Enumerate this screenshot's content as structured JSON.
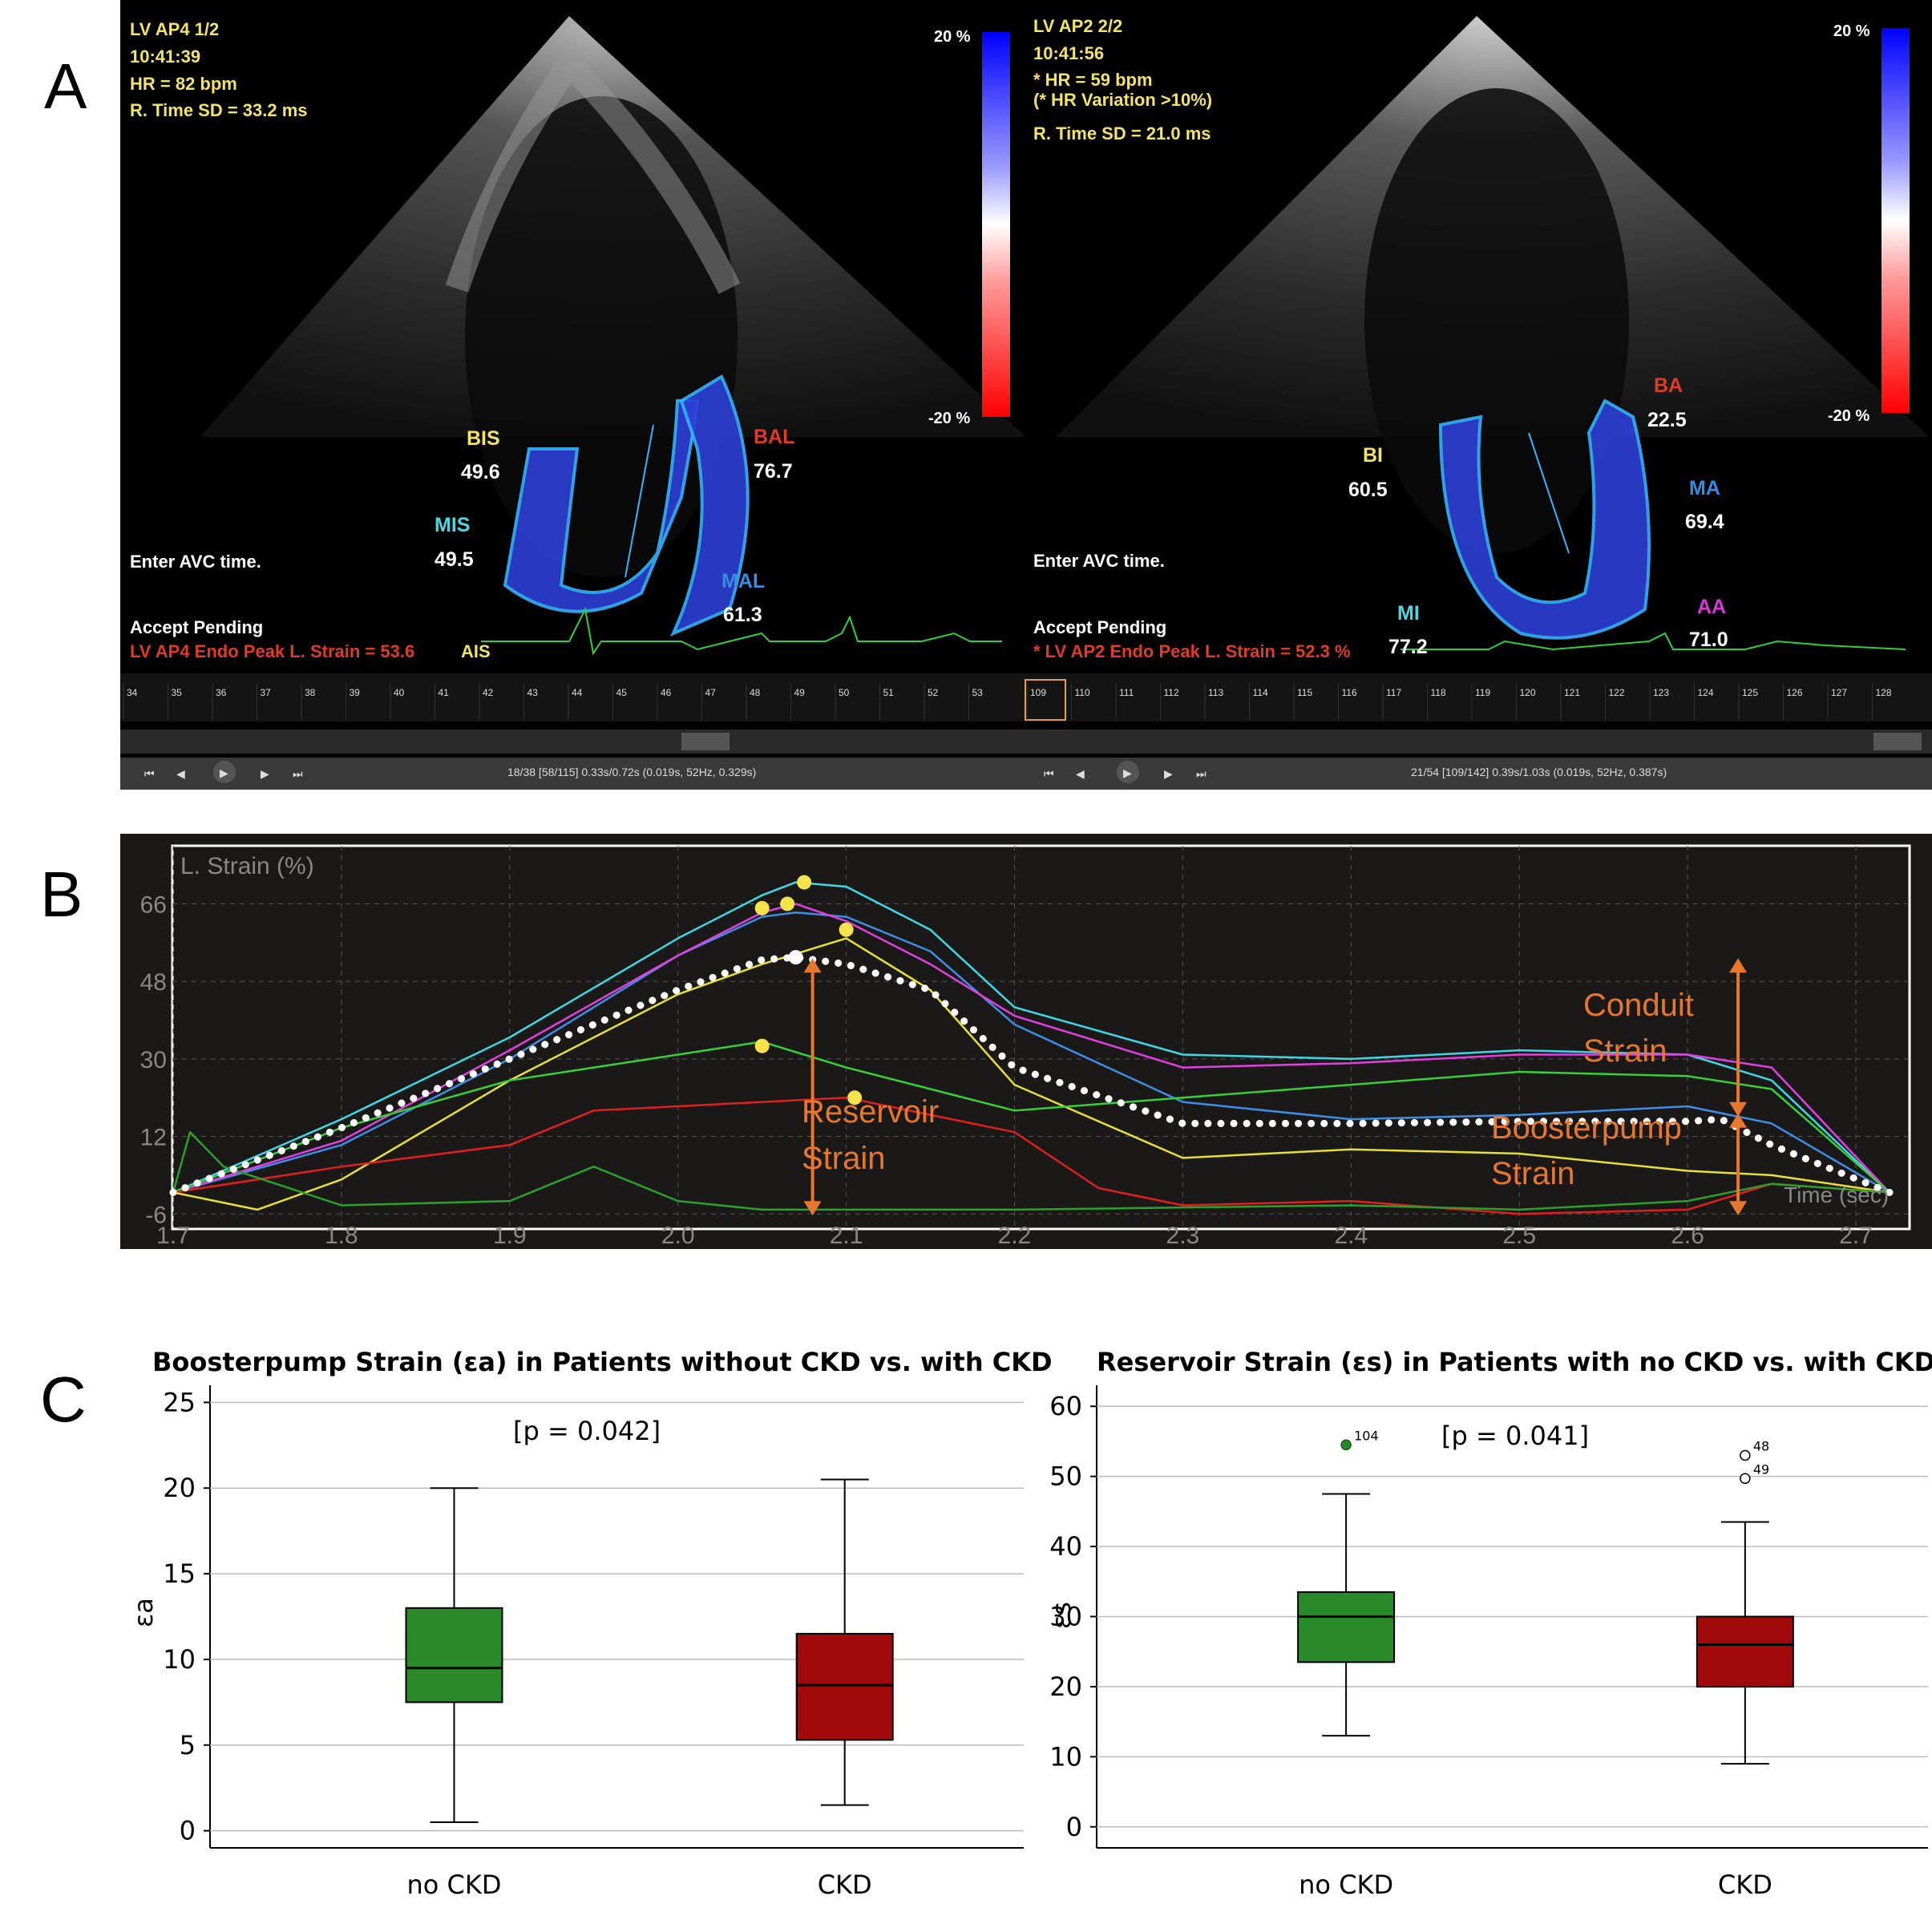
{
  "panel_labels": {
    "a": "A",
    "b": "B",
    "c": "C"
  },
  "panel_a": {
    "left_view": {
      "title": "LV AP4  1/2",
      "time": "10:41:39",
      "hr": "HR = 82 bpm",
      "hr_note": "",
      "rtime": "R. Time SD = 33.2 ms",
      "avc_prompt": "Enter AVC time.",
      "accept": "Accept Pending",
      "peak": "LV AP4 Endo Peak L. Strain = 53.6",
      "peak_suffix": "AIS",
      "scale_top": "20 %",
      "scale_bottom": "-20 %",
      "segments": [
        {
          "name": "BIS",
          "value": "49.6",
          "color": "#f2e36a"
        },
        {
          "name": "MIS",
          "value": "49.5",
          "color": "#4fd6e0"
        },
        {
          "name": "BAL",
          "value": "76.7",
          "color": "#e03a2a"
        },
        {
          "name": "MAL",
          "value": "61.3",
          "color": "#3b8be0"
        }
      ],
      "frame_numbers": [
        "34",
        "35",
        "36",
        "37",
        "38",
        "39",
        "40",
        "41",
        "42",
        "43",
        "44",
        "45",
        "46",
        "47",
        "48",
        "49",
        "50",
        "51",
        "52",
        "53"
      ],
      "status": "18/38  [58/115]  0.33s/0.72s  (0.019s, 52Hz, 0.329s)"
    },
    "right_view": {
      "title": "LV AP2  2/2",
      "time": "10:41:56",
      "hr": "* HR = 59 bpm",
      "hr_note": "(* HR Variation >10%)",
      "rtime": "R. Time SD = 21.0 ms",
      "avc_prompt": "Enter AVC time.",
      "accept": "Accept Pending",
      "peak": "* LV AP2 Endo Peak L. Strain = 52.3 %",
      "peak_suffix": "",
      "scale_top": "20 %",
      "scale_bottom": "-20 %",
      "segments": [
        {
          "name": "BA",
          "value": "22.5",
          "color": "#e03a2a"
        },
        {
          "name": "BI",
          "value": "60.5",
          "color": "#f2e36a"
        },
        {
          "name": "MA",
          "value": "69.4",
          "color": "#3b8be0"
        },
        {
          "name": "MI",
          "value": "77.2",
          "color": "#4fd6e0"
        },
        {
          "name": "AA",
          "value": "71.0",
          "color": "#d63ad6"
        }
      ],
      "frame_numbers": [
        "109",
        "110",
        "111",
        "112",
        "113",
        "114",
        "115",
        "116",
        "117",
        "118",
        "119",
        "120",
        "121",
        "122",
        "123",
        "124",
        "125",
        "126",
        "127",
        "128"
      ],
      "status": "21/54  [109/142]  0.39s/1.03s  (0.019s, 52Hz, 0.387s)"
    }
  },
  "chart_data": [
    {
      "type": "line",
      "title": "",
      "ylabel": "L. Strain (%)",
      "xlabel": "Time (sec)",
      "xlim": [
        1.7,
        2.73
      ],
      "ylim": [
        -8,
        78
      ],
      "yticks": [
        -6,
        12,
        30,
        48,
        66
      ],
      "xticks": [
        1.7,
        1.8,
        1.9,
        2.0,
        2.1,
        2.2,
        2.3,
        2.4,
        2.5,
        2.6,
        2.7
      ],
      "grid": true,
      "series": [
        {
          "color": "#3fd6e6",
          "x": [
            1.7,
            1.8,
            1.9,
            2.0,
            2.05,
            2.07,
            2.1,
            2.15,
            2.2,
            2.3,
            2.4,
            2.5,
            2.6,
            2.65,
            2.72
          ],
          "y": [
            -1,
            16,
            35,
            58,
            68,
            71,
            70,
            60,
            42,
            31,
            30,
            32,
            31,
            25,
            -1
          ]
        },
        {
          "color": "#3e8ee6",
          "x": [
            1.7,
            1.8,
            1.9,
            2.0,
            2.05,
            2.07,
            2.1,
            2.15,
            2.2,
            2.3,
            2.4,
            2.5,
            2.6,
            2.65,
            2.72
          ],
          "y": [
            -1,
            10,
            30,
            54,
            63,
            64,
            63,
            55,
            38,
            20,
            16,
            17,
            19,
            15,
            -1
          ]
        },
        {
          "color": "#e040e0",
          "x": [
            1.7,
            1.8,
            1.9,
            2.0,
            2.05,
            2.07,
            2.1,
            2.15,
            2.2,
            2.3,
            2.4,
            2.5,
            2.6,
            2.65,
            2.72
          ],
          "y": [
            -1,
            11,
            32,
            54,
            64,
            66,
            62,
            52,
            40,
            28,
            29,
            31,
            31,
            28,
            -1
          ]
        },
        {
          "color": "#e8e035",
          "x": [
            1.7,
            1.75,
            1.8,
            1.9,
            2.0,
            2.05,
            2.1,
            2.15,
            2.2,
            2.3,
            2.4,
            2.5,
            2.6,
            2.65,
            2.72
          ],
          "y": [
            -1,
            -5,
            2,
            25,
            45,
            52,
            58,
            46,
            24,
            7,
            9,
            8,
            4,
            3,
            -1
          ]
        },
        {
          "color": "#38d038",
          "x": [
            1.7,
            1.8,
            1.9,
            2.0,
            2.05,
            2.1,
            2.2,
            2.3,
            2.4,
            2.5,
            2.6,
            2.65,
            2.72
          ],
          "y": [
            -1,
            14,
            25,
            31,
            34,
            28,
            18,
            21,
            24,
            27,
            26,
            23,
            -1
          ]
        },
        {
          "color": "#e02020",
          "x": [
            1.7,
            1.8,
            1.9,
            1.95,
            2.0,
            2.05,
            2.1,
            2.2,
            2.25,
            2.3,
            2.4,
            2.5,
            2.6,
            2.65,
            2.72
          ],
          "y": [
            -1,
            5,
            10,
            18,
            19,
            20,
            21,
            13,
            0,
            -4,
            -3,
            -6,
            -5,
            1,
            -1
          ]
        },
        {
          "color": "#2ca02c",
          "x": [
            1.7,
            1.71,
            1.73,
            1.8,
            1.9,
            1.95,
            2.0,
            2.05,
            2.2,
            2.4,
            2.5,
            2.6,
            2.65,
            2.72
          ],
          "y": [
            -1,
            13,
            5,
            -4,
            -3,
            5,
            -3,
            -5,
            -5,
            -4,
            -5,
            -3,
            1,
            -1
          ]
        },
        {
          "color": "#ffffff",
          "dotted": true,
          "x": [
            1.7,
            1.8,
            1.9,
            2.0,
            2.05,
            2.07,
            2.1,
            2.15,
            2.2,
            2.3,
            2.4,
            2.5,
            2.6,
            2.62,
            2.65,
            2.72
          ],
          "y": [
            -1,
            14,
            30,
            46,
            53,
            53.6,
            52,
            46,
            28,
            15,
            15,
            15.5,
            15.5,
            16,
            10,
            -1
          ]
        }
      ],
      "peak_markers": [
        {
          "x": 2.075,
          "y": 71
        },
        {
          "x": 2.05,
          "y": 65
        },
        {
          "x": 2.065,
          "y": 66
        },
        {
          "x": 2.1,
          "y": 60
        },
        {
          "x": 2.05,
          "y": 33
        },
        {
          "x": 2.105,
          "y": 21
        },
        {
          "x": 2.07,
          "y": 53.6
        }
      ],
      "annotations": [
        {
          "line1": "Reservoir",
          "line2": "Strain",
          "x": 2.08,
          "y1": -6,
          "y2": 53
        },
        {
          "line1": "Conduit",
          "line2": "Strain",
          "x": 2.63,
          "y1": 17,
          "y2": 53
        },
        {
          "line1": "Boosterpump",
          "line2": "Strain",
          "x": 2.63,
          "y1": -6,
          "y2": 17
        }
      ],
      "annotation_color": "#e8772e"
    },
    {
      "type": "box",
      "title": "Boosterpump Strain (εa) in Patients without CKD vs. with CKD",
      "ylabel": "εa",
      "xlabel": "",
      "ylim": [
        -1,
        26
      ],
      "yticks": [
        0,
        5,
        10,
        15,
        20,
        25
      ],
      "grid": true,
      "p_label": "[p = 0.042]",
      "categories": [
        "no CKD",
        "CKD"
      ],
      "boxes": [
        {
          "category": "no CKD",
          "min": 0.5,
          "q1": 7.5,
          "median": 9.5,
          "q3": 13,
          "max": 20,
          "color": "#2a8a2a"
        },
        {
          "category": "CKD",
          "min": 1.5,
          "q1": 5.3,
          "median": 8.5,
          "q3": 11.5,
          "max": 20.5,
          "color": "#a00a0a"
        }
      ],
      "outliers": []
    },
    {
      "type": "box",
      "title": "Reservoir Strain (εs) in Patients with no CKD vs. with CKD",
      "ylabel": "εs",
      "xlabel": "",
      "ylim": [
        -3,
        63
      ],
      "yticks": [
        0,
        10,
        20,
        30,
        40,
        50,
        60
      ],
      "grid": true,
      "p_label": "[p = 0.041]",
      "categories": [
        "no CKD",
        "CKD"
      ],
      "boxes": [
        {
          "category": "no CKD",
          "min": 13,
          "q1": 23.5,
          "median": 30,
          "q3": 33.5,
          "max": 47.5,
          "color": "#2a8a2a"
        },
        {
          "category": "CKD",
          "min": 9,
          "q1": 20,
          "median": 26,
          "q3": 30,
          "max": 43.5,
          "color": "#a00a0a"
        }
      ],
      "outliers": [
        {
          "category": "no CKD",
          "value": 54.5,
          "label": "104",
          "filled": true
        },
        {
          "category": "CKD",
          "value": 53,
          "label": "48",
          "filled": false
        },
        {
          "category": "CKD",
          "value": 49.7,
          "label": "49",
          "filled": false
        }
      ]
    }
  ]
}
